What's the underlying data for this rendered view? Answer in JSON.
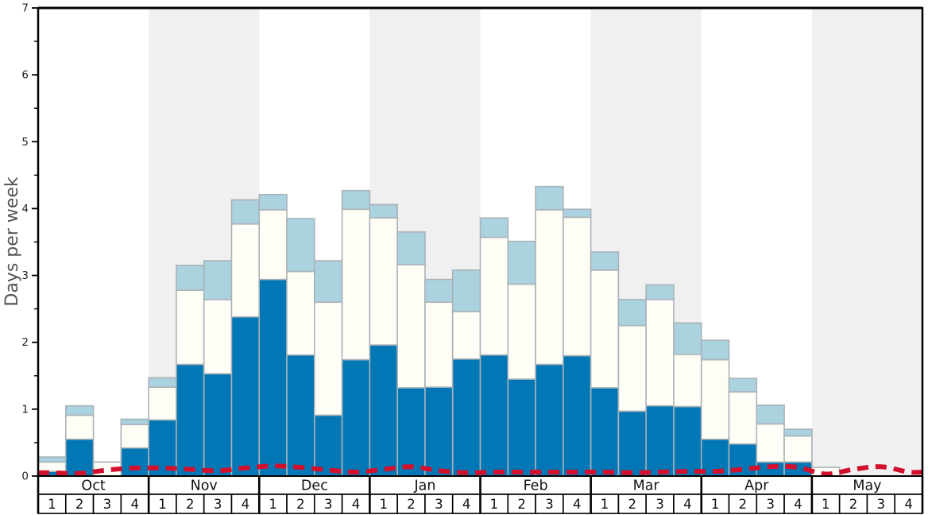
{
  "chart_data": {
    "type": "bar",
    "title": "",
    "ylabel": "Days per week",
    "xlabel": "",
    "ylim": [
      0,
      7
    ],
    "y_major_ticks": [
      0,
      1,
      2,
      3,
      4,
      5,
      6,
      7
    ],
    "y_minor_step": 0.5,
    "grid": "off",
    "legend": "none",
    "months": [
      "Oct",
      "Nov",
      "Dec",
      "Jan",
      "Feb",
      "Mar",
      "Apr",
      "May"
    ],
    "week_labels": [
      "1",
      "2",
      "3",
      "4"
    ],
    "shaded_month_indices": [
      1,
      3,
      5,
      7
    ],
    "series": [
      {
        "name": "dark-blue",
        "color": "#0277b5",
        "values": [
          0.07,
          0.55,
          0,
          0.42,
          0.84,
          1.67,
          1.53,
          2.38,
          2.94,
          1.81,
          0.91,
          1.74,
          1.96,
          1.32,
          1.33,
          1.75,
          1.81,
          1.45,
          1.67,
          1.8,
          1.32,
          0.97,
          1.05,
          1.04,
          0.55,
          0.48,
          0.21,
          0.21,
          0,
          0,
          0,
          0
        ]
      },
      {
        "name": "white",
        "color": "#fffef6",
        "values": [
          0.14,
          0.36,
          0.21,
          0.35,
          0.49,
          1.11,
          1.11,
          1.39,
          1.04,
          1.25,
          1.69,
          2.25,
          1.9,
          1.84,
          1.27,
          0.71,
          1.76,
          1.42,
          2.31,
          2.07,
          1.76,
          1.28,
          1.59,
          0.78,
          1.19,
          0.78,
          0.57,
          0.39,
          0.13,
          0,
          0,
          0
        ]
      },
      {
        "name": "light-blue",
        "color": "#abd2df",
        "values": [
          0.075,
          0.14,
          0,
          0.08,
          0.14,
          0.37,
          0.58,
          0.36,
          0.23,
          0.79,
          0.62,
          0.28,
          0.2,
          0.49,
          0.34,
          0.62,
          0.29,
          0.64,
          0.35,
          0.12,
          0.27,
          0.39,
          0.22,
          0.47,
          0.29,
          0.2,
          0.28,
          0.1,
          0,
          0,
          0,
          0
        ]
      }
    ],
    "line_series": {
      "name": "red-dashed-line",
      "color": "#d40f2e",
      "values": [
        0.05,
        0.04,
        0.09,
        0.12,
        0.12,
        0.1,
        0.08,
        0.12,
        0.15,
        0.13,
        0.09,
        0.06,
        0.1,
        0.14,
        0.08,
        0.05,
        0.06,
        0.06,
        0.06,
        0.06,
        0.06,
        0.05,
        0.06,
        0.07,
        0.07,
        0.1,
        0.14,
        0.13,
        0.03,
        0.1,
        0.14,
        0.06
      ]
    },
    "colors": {
      "stripe": "#f0f0f0",
      "bar_outline": "#aab2b8",
      "axis": "#000000",
      "tick_text": "#222222",
      "month_text": "#111111",
      "ylabel_text": "#555555",
      "row_fill": "#ffffff"
    }
  }
}
